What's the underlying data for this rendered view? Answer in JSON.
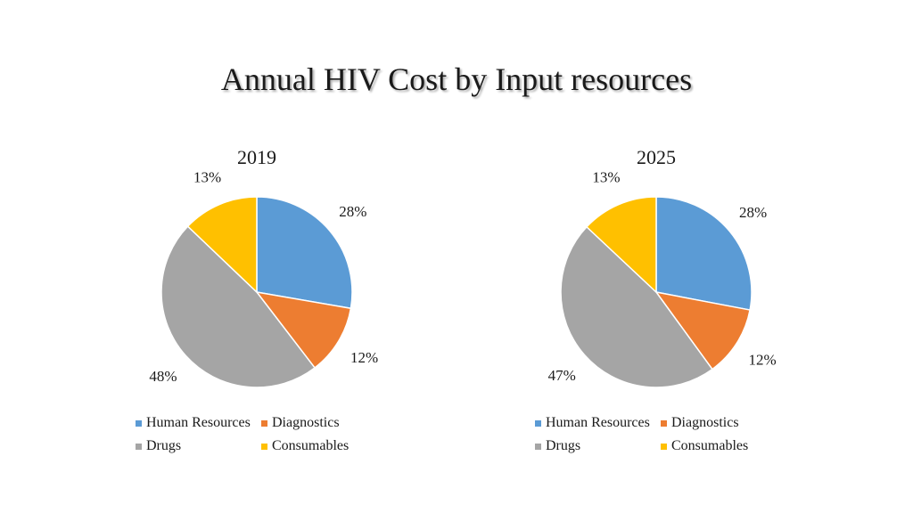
{
  "slide": {
    "title": "Annual HIV Cost by Input resources"
  },
  "colors": {
    "human_resources": "#5b9bd5",
    "diagnostics": "#ed7d31",
    "drugs": "#a5a5a5",
    "consumables": "#ffc000"
  },
  "legend": [
    "Human Resources",
    "Diagnostics",
    "Drugs",
    "Consumables"
  ],
  "chart_data": [
    {
      "type": "pie",
      "title": "2019",
      "categories": [
        "Human Resources",
        "Diagnostics",
        "Drugs",
        "Consumables"
      ],
      "values": [
        28,
        12,
        48,
        13
      ],
      "labels": [
        "28%",
        "12%",
        "48%",
        "13%"
      ],
      "legend_position": "bottom"
    },
    {
      "type": "pie",
      "title": "2025",
      "categories": [
        "Human Resources",
        "Diagnostics",
        "Drugs",
        "Consumables"
      ],
      "values": [
        28,
        12,
        47,
        13
      ],
      "labels": [
        "28%",
        "12%",
        "47%",
        "13%"
      ],
      "legend_position": "bottom"
    }
  ]
}
